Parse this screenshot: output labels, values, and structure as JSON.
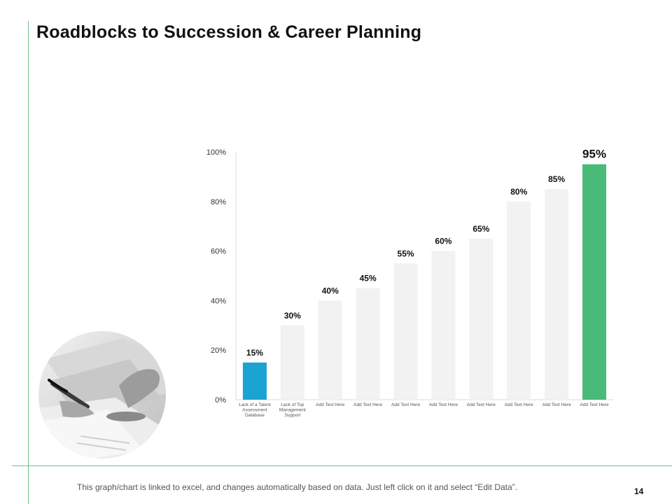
{
  "slide": {
    "title": "Roadblocks to Succession & Career Planning",
    "footer": "This graph/chart is linked to excel, and changes automatically based on data. Just left click on it and select “Edit Data”.",
    "page_number": "14"
  },
  "colors": {
    "accent_line": "#6cc28e",
    "bar_default": "#f2f2f2",
    "bar_first": "#1ba3d1",
    "bar_last": "#4aba78"
  },
  "chart_data": {
    "type": "bar",
    "categories": [
      "Lack of a Talent Assessment Database",
      "Lack of Top Management Support",
      "Add Text Here",
      "Add Text Here",
      "Add Text Here",
      "Add Text Here",
      "Add Text Here",
      "Add Text Here",
      "Add Text Here",
      "Add Text Here"
    ],
    "category_lines": [
      [
        "Lack of a Talent",
        "Assessment",
        "Database"
      ],
      [
        "Lack of Top",
        "Management",
        "Support"
      ],
      [
        "Add Text Here"
      ],
      [
        "Add Text Here"
      ],
      [
        "Add Text Here"
      ],
      [
        "Add Text Here"
      ],
      [
        "Add Text Here"
      ],
      [
        "Add Text Here"
      ],
      [
        "Add Text Here"
      ],
      [
        "Add Text Here"
      ]
    ],
    "values": [
      15,
      30,
      40,
      45,
      55,
      60,
      65,
      80,
      85,
      95
    ],
    "data_labels": [
      "15%",
      "30%",
      "40%",
      "45%",
      "55%",
      "60%",
      "65%",
      "80%",
      "85%",
      "95%"
    ],
    "y_ticks": [
      0,
      20,
      40,
      60,
      80,
      100
    ],
    "y_tick_labels": [
      "0%",
      "20%",
      "40%",
      "60%",
      "80%",
      "100%"
    ],
    "ylim": [
      0,
      100
    ],
    "title": "",
    "xlabel": "",
    "ylabel": "",
    "grid": false,
    "legend": "none"
  }
}
